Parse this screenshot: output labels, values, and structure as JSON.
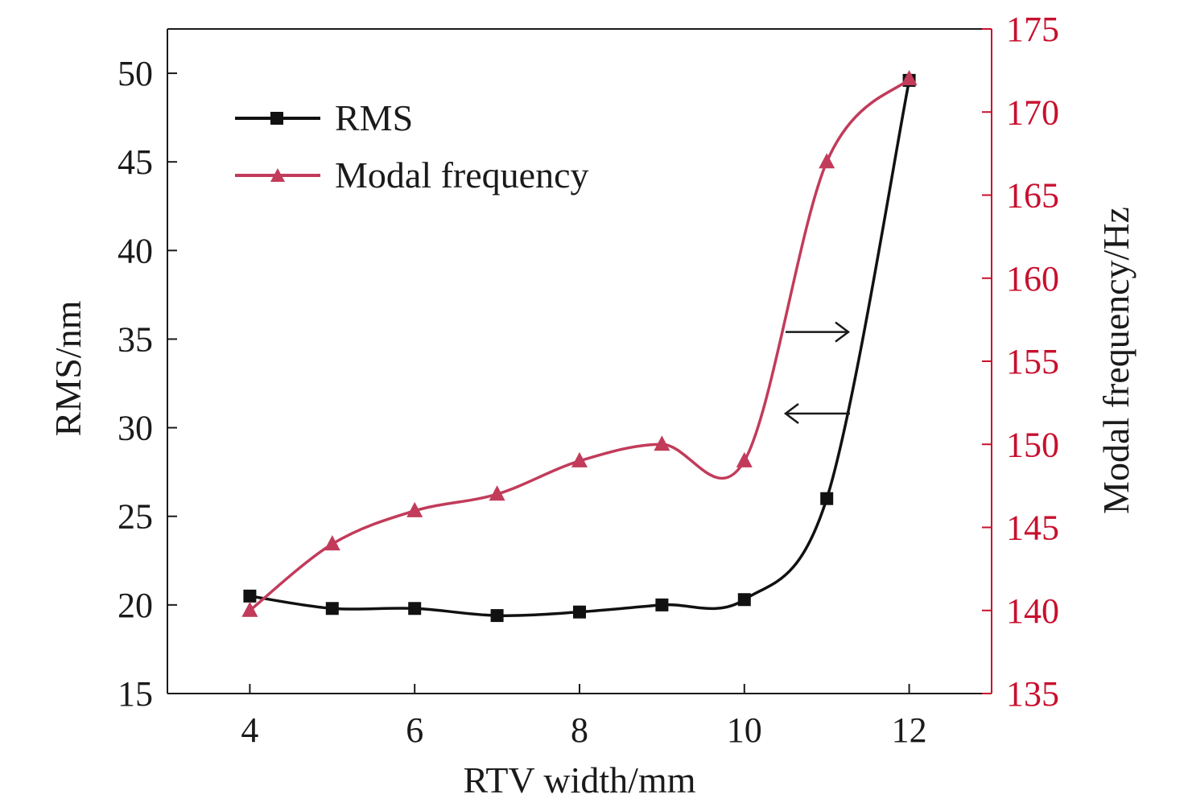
{
  "chart_data": {
    "type": "line",
    "x": [
      4,
      5,
      6,
      7,
      8,
      9,
      10,
      11,
      12
    ],
    "xlabel": "RTV width/mm",
    "xlim": [
      3,
      13
    ],
    "xticks": [
      4,
      6,
      8,
      10,
      12
    ],
    "ylabel_left": "RMS/nm",
    "ylim_left": [
      15,
      52.5
    ],
    "yticks_left": [
      15,
      20,
      25,
      30,
      35,
      40,
      45,
      50
    ],
    "ylabel_right": "Modal frequency/Hz",
    "ylim_right": [
      135,
      175
    ],
    "yticks_right": [
      135,
      140,
      145,
      150,
      155,
      160,
      165,
      170,
      175
    ],
    "series": [
      {
        "name": "RMS",
        "axis": "left",
        "marker": "square",
        "color": "#111111",
        "values": [
          20.5,
          19.8,
          19.8,
          19.4,
          19.6,
          20.0,
          20.3,
          26.0,
          49.6
        ]
      },
      {
        "name": "Modal frequency",
        "axis": "right",
        "marker": "triangle",
        "color": "#c23b5a",
        "values": [
          140,
          144,
          146,
          147,
          149,
          150,
          149,
          167,
          172
        ]
      }
    ],
    "annotations": [
      {
        "type": "arrow",
        "direction": "right",
        "points_to": "right axis"
      },
      {
        "type": "arrow",
        "direction": "left",
        "points_to": "left axis"
      }
    ],
    "legend_position": "top-left",
    "grid": false,
    "colors": {
      "right_axis": "#c8102e",
      "axis": "#1a1a1a"
    }
  }
}
